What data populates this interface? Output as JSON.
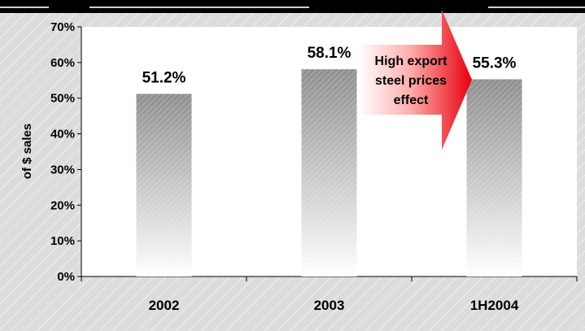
{
  "chart_data": {
    "type": "bar",
    "categories": [
      "2002",
      "2003",
      "1H2004"
    ],
    "values": [
      51.2,
      58.1,
      55.3
    ],
    "value_labels": [
      "51.2%",
      "58.1%",
      "55.3%"
    ],
    "title": "",
    "xlabel": "",
    "ylabel": "of $ sales",
    "ylim": [
      0,
      70
    ],
    "yticks": [
      "0%",
      "10%",
      "20%",
      "30%",
      "40%",
      "50%",
      "60%",
      "70%"
    ],
    "grid": false,
    "annotation": {
      "lines": [
        "High export",
        "steel prices",
        "effect"
      ],
      "color": "#e8000d"
    }
  }
}
